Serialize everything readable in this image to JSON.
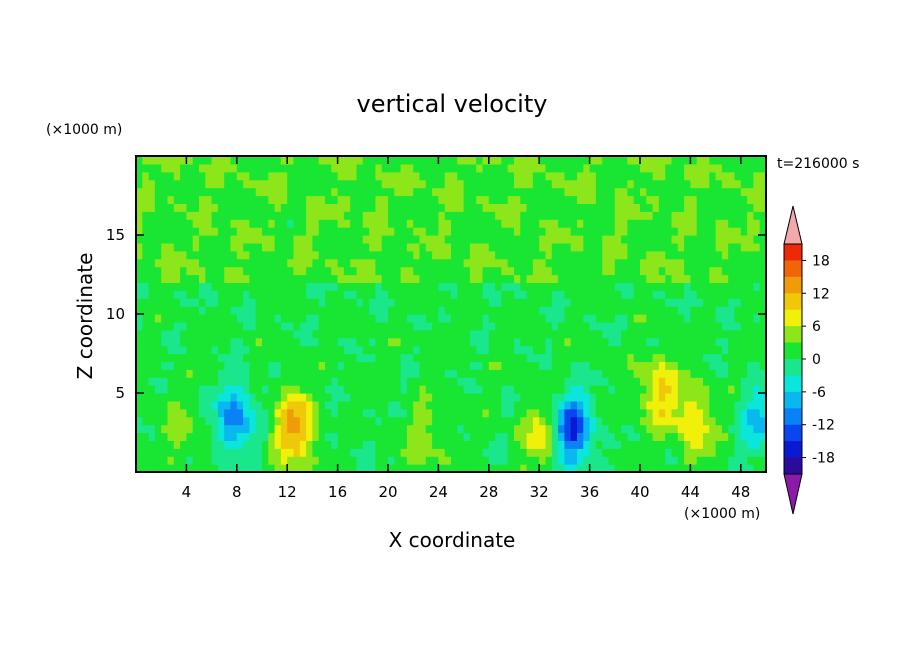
{
  "chart_data": {
    "type": "heatmap",
    "title": "vertical velocity",
    "xlabel": "X coordinate",
    "ylabel": "Z coordinate",
    "x_unit": "(×1000 m)",
    "y_unit": "(×1000 m)",
    "time_label": "t=216000 s",
    "xlim": [
      0,
      50
    ],
    "ylim": [
      0,
      20
    ],
    "x_ticks": [
      4,
      8,
      12,
      16,
      20,
      24,
      28,
      32,
      36,
      40,
      44,
      48
    ],
    "y_ticks": [
      5,
      10,
      15
    ],
    "colorbar": {
      "tick_labels": [
        18,
        12,
        6,
        0,
        -6,
        -12,
        -18
      ],
      "levels": [
        -21,
        -18,
        -15,
        -12,
        -9,
        -6,
        -3,
        0,
        3,
        6,
        9,
        12,
        15,
        18,
        21
      ],
      "colors": [
        "#6a0a9a",
        "#2b0a9e",
        "#0a1ad2",
        "#0a46f0",
        "#0a82f5",
        "#0ab8f0",
        "#0ae6dc",
        "#1ae68c",
        "#18e632",
        "#8ce61a",
        "#f0f00a",
        "#f0c80a",
        "#f09b0a",
        "#f0640a",
        "#f0280a",
        "#f0aaaa"
      ],
      "under_color": "#8c1aa8",
      "over_color": "#f0aaaa"
    },
    "features": [
      {
        "x": 3.6,
        "z": 2.7,
        "w": 3.2,
        "peak": 9
      },
      {
        "x": 7.8,
        "z": 3.4,
        "w": -11.5,
        "peak": -12
      },
      {
        "x": 12.6,
        "z": 2.8,
        "w": 13,
        "peak": 13
      },
      {
        "x": 34.6,
        "z": 2.7,
        "w": -16,
        "peak": -16
      },
      {
        "x": 32.2,
        "z": 2.2,
        "w": 7,
        "peak": 7
      },
      {
        "x": 41.5,
        "z": 5.0,
        "w": 8.5,
        "peak": 9
      },
      {
        "x": 44.3,
        "z": 3.2,
        "w": 8,
        "peak": 8
      },
      {
        "x": 23.0,
        "z": 2.0,
        "w": 4,
        "peak": 4
      },
      {
        "x": 49.6,
        "z": 3.3,
        "w": -8,
        "peak": -8
      }
    ]
  }
}
